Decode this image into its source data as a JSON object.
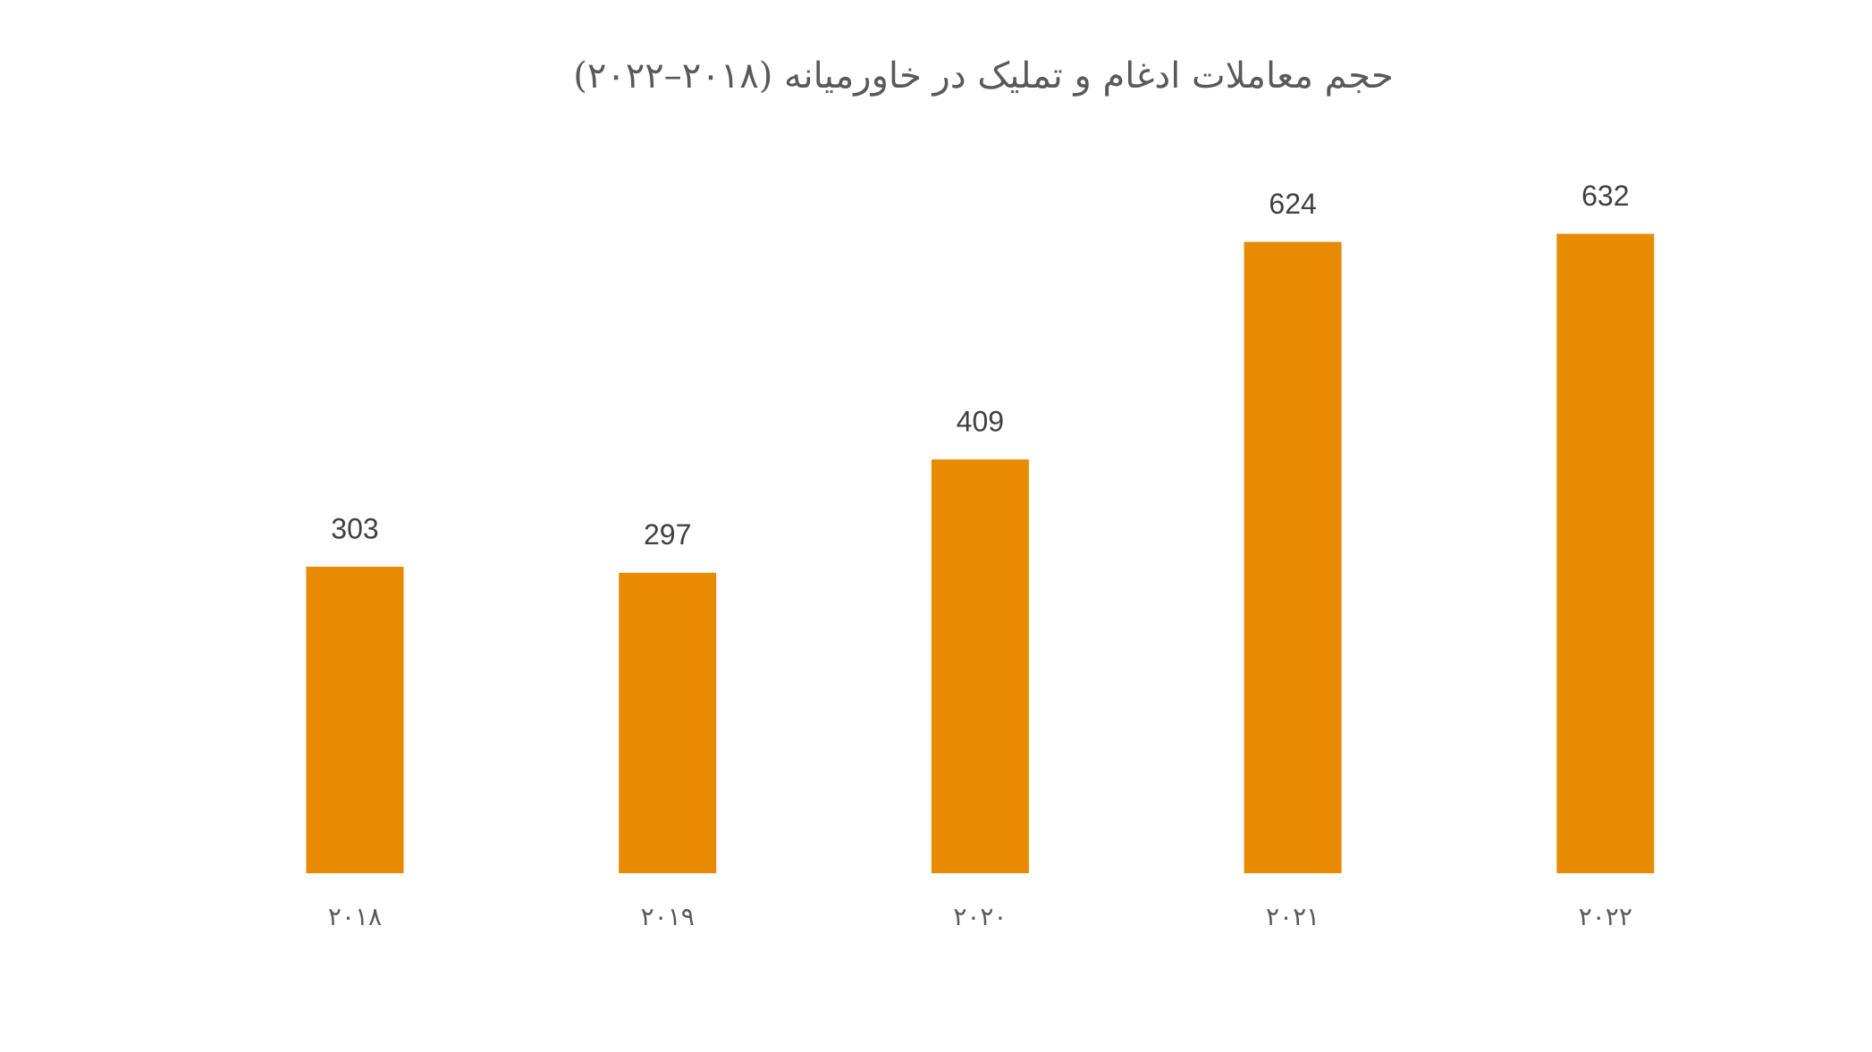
{
  "chart_data": {
    "type": "bar",
    "title": "حجم معاملات ادغام و تملیک در خاورمیانه (۲۰۱۸–۲۰۲۲)",
    "categories": [
      "۲۰۱۸",
      "۲۰۱۹",
      "۲۰۲۰",
      "۲۰۲۱",
      "۲۰۲۲"
    ],
    "values": [
      303,
      297,
      409,
      624,
      632
    ],
    "color": "#e98a03"
  }
}
